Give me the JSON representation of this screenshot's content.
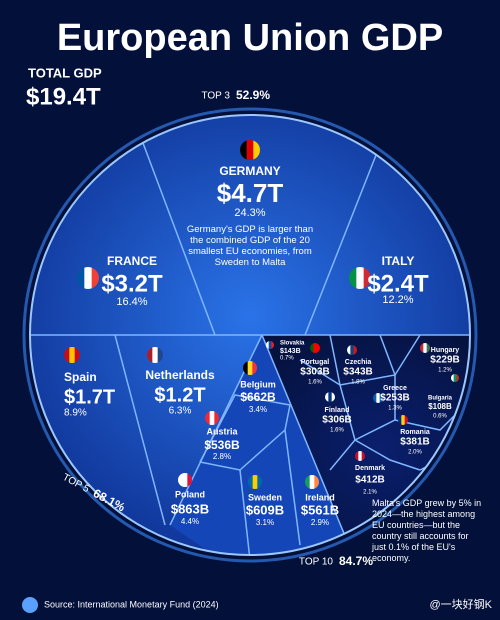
{
  "header": {
    "title": "European Union GDP",
    "total_label": "TOTAL GDP",
    "total_value": "$19.4T"
  },
  "rings": [
    {
      "label": "TOP 3",
      "share": "52.9%"
    },
    {
      "label": "TOP 5",
      "share": "68.1%"
    },
    {
      "label": "TOP 10",
      "share": "84.7%"
    }
  ],
  "countries": [
    {
      "name": "GERMANY",
      "gdp": "$4.7T",
      "share": "24.3%"
    },
    {
      "name": "FRANCE",
      "gdp": "$3.2T",
      "share": "16.4%"
    },
    {
      "name": "ITALY",
      "gdp": "$2.4T",
      "share": "12.2%"
    },
    {
      "name": "Spain",
      "gdp": "$1.7T",
      "share": "8.9%"
    },
    {
      "name": "Netherlands",
      "gdp": "$1.2T",
      "share": "6.3%"
    },
    {
      "name": "Belgium",
      "gdp": "$662B",
      "share": "3.4%"
    },
    {
      "name": "Austria",
      "gdp": "$536B",
      "share": "2.8%"
    },
    {
      "name": "Poland",
      "gdp": "$863B",
      "share": "4.4%"
    },
    {
      "name": "Sweden",
      "gdp": "$609B",
      "share": "3.1%"
    },
    {
      "name": "Ireland",
      "gdp": "$561B",
      "share": "2.9%"
    },
    {
      "name": "Slovakia",
      "gdp": "$143B",
      "share": "0.7%"
    },
    {
      "name": "Portugal",
      "gdp": "$303B",
      "share": "1.6%"
    },
    {
      "name": "Czechia",
      "gdp": "$343B",
      "share": "1.8%"
    },
    {
      "name": "Hungary",
      "gdp": "$229B",
      "share": "1.2%"
    },
    {
      "name": "Finland",
      "gdp": "$306B",
      "share": "1.6%"
    },
    {
      "name": "Greece",
      "gdp": "$253B",
      "share": "1.3%"
    },
    {
      "name": "Bulgaria",
      "gdp": "$108B",
      "share": "0.6%"
    },
    {
      "name": "Romania",
      "gdp": "$381B",
      "share": "2.0%"
    },
    {
      "name": "Denmark",
      "gdp": "$412B",
      "share": "2.1%"
    }
  ],
  "notes": {
    "germany": "Germany's GDP is larger than the combined GDP of the 20 smallest EU economies, from Sweden to Malta",
    "malta": "Malta's GDP grew by 5% in 2024—the highest among EU countries—but the country still accounts for just 0.1% of the EU's economy."
  },
  "footer": {
    "source": "Source: International Monetary Fund (2024)",
    "watermark": "@一块好钢K"
  }
}
